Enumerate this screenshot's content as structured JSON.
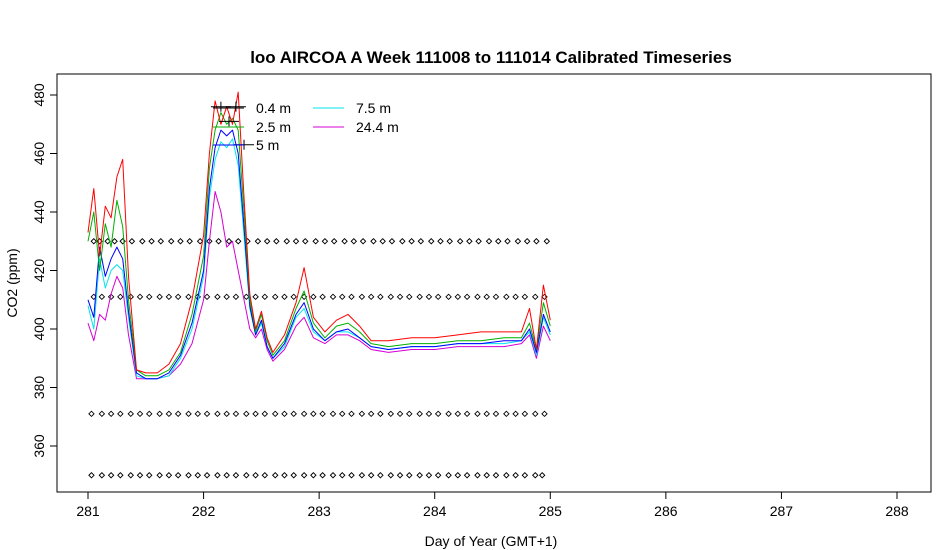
{
  "chart_data": {
    "type": "line",
    "title": "loo AIRCOA A  Week 111008 to 111014  Calibrated Timeseries",
    "xlabel": "Day of Year (GMT+1)",
    "ylabel": "CO2 (ppm)",
    "xlim": [
      281,
      288
    ],
    "ylim": [
      348,
      485
    ],
    "x_ticks": [
      281,
      282,
      283,
      284,
      285,
      286,
      287,
      288
    ],
    "y_ticks": [
      360,
      380,
      400,
      420,
      440,
      460,
      480
    ],
    "grid": false,
    "legend_position": "top-left",
    "series": [
      {
        "name": "0.4 m",
        "color": "#000000",
        "style": "errorbar",
        "points": [
          [
            282.15,
            476
          ],
          [
            282.22,
            471
          ],
          [
            282.28,
            476
          ],
          [
            282.35,
            463
          ]
        ]
      },
      {
        "name": "2.5 m",
        "color": "#00b000",
        "style": "line",
        "points": [
          [
            281.0,
            430
          ],
          [
            281.05,
            440
          ],
          [
            281.1,
            420
          ],
          [
            281.15,
            436
          ],
          [
            281.2,
            428
          ],
          [
            281.25,
            444
          ],
          [
            281.3,
            435
          ],
          [
            281.35,
            410
          ],
          [
            281.42,
            386
          ],
          [
            281.5,
            384
          ],
          [
            281.6,
            384
          ],
          [
            281.7,
            386
          ],
          [
            281.8,
            392
          ],
          [
            281.9,
            405
          ],
          [
            282.0,
            425
          ],
          [
            282.05,
            455
          ],
          [
            282.1,
            468
          ],
          [
            282.15,
            474
          ],
          [
            282.2,
            470
          ],
          [
            282.25,
            472
          ],
          [
            282.3,
            468
          ],
          [
            282.35,
            440
          ],
          [
            282.4,
            410
          ],
          [
            282.45,
            399
          ],
          [
            282.5,
            405
          ],
          [
            282.55,
            396
          ],
          [
            282.6,
            391
          ],
          [
            282.7,
            396
          ],
          [
            282.8,
            407
          ],
          [
            282.87,
            413
          ],
          [
            282.95,
            402
          ],
          [
            283.05,
            397
          ],
          [
            283.15,
            401
          ],
          [
            283.25,
            402
          ],
          [
            283.35,
            399
          ],
          [
            283.45,
            395
          ],
          [
            283.6,
            394
          ],
          [
            283.8,
            395
          ],
          [
            284.0,
            395
          ],
          [
            284.2,
            396
          ],
          [
            284.4,
            396
          ],
          [
            284.6,
            397
          ],
          [
            284.75,
            397
          ],
          [
            284.82,
            402
          ],
          [
            284.88,
            393
          ],
          [
            284.94,
            409
          ],
          [
            285.0,
            401
          ]
        ]
      },
      {
        "name": "5 m",
        "color": "#0000ff",
        "style": "line",
        "points": [
          [
            281.0,
            410
          ],
          [
            281.05,
            404
          ],
          [
            281.1,
            428
          ],
          [
            281.15,
            418
          ],
          [
            281.2,
            424
          ],
          [
            281.25,
            428
          ],
          [
            281.3,
            424
          ],
          [
            281.35,
            406
          ],
          [
            281.42,
            385
          ],
          [
            281.5,
            383
          ],
          [
            281.6,
            383
          ],
          [
            281.7,
            385
          ],
          [
            281.8,
            391
          ],
          [
            281.9,
            402
          ],
          [
            282.0,
            420
          ],
          [
            282.05,
            448
          ],
          [
            282.1,
            462
          ],
          [
            282.15,
            468
          ],
          [
            282.2,
            466
          ],
          [
            282.25,
            468
          ],
          [
            282.3,
            460
          ],
          [
            282.35,
            435
          ],
          [
            282.4,
            408
          ],
          [
            282.45,
            398
          ],
          [
            282.5,
            403
          ],
          [
            282.55,
            394
          ],
          [
            282.6,
            390
          ],
          [
            282.7,
            395
          ],
          [
            282.8,
            405
          ],
          [
            282.87,
            409
          ],
          [
            282.95,
            400
          ],
          [
            283.05,
            396
          ],
          [
            283.15,
            399
          ],
          [
            283.25,
            400
          ],
          [
            283.35,
            397
          ],
          [
            283.45,
            394
          ],
          [
            283.6,
            393
          ],
          [
            283.8,
            394
          ],
          [
            284.0,
            394
          ],
          [
            284.2,
            395
          ],
          [
            284.4,
            395
          ],
          [
            284.6,
            396
          ],
          [
            284.75,
            396
          ],
          [
            284.82,
            400
          ],
          [
            284.88,
            392
          ],
          [
            284.94,
            405
          ],
          [
            285.0,
            399
          ]
        ]
      },
      {
        "name": "7.5 m",
        "color": "#00e5ee",
        "style": "line",
        "points": [
          [
            281.0,
            408
          ],
          [
            281.05,
            400
          ],
          [
            281.1,
            424
          ],
          [
            281.15,
            414
          ],
          [
            281.2,
            420
          ],
          [
            281.25,
            422
          ],
          [
            281.3,
            420
          ],
          [
            281.35,
            404
          ],
          [
            281.42,
            384
          ],
          [
            281.5,
            383
          ],
          [
            281.6,
            383
          ],
          [
            281.7,
            384
          ],
          [
            281.8,
            390
          ],
          [
            281.9,
            400
          ],
          [
            282.0,
            418
          ],
          [
            282.05,
            445
          ],
          [
            282.1,
            458
          ],
          [
            282.15,
            464
          ],
          [
            282.2,
            462
          ],
          [
            282.25,
            465
          ],
          [
            282.3,
            456
          ],
          [
            282.35,
            432
          ],
          [
            282.4,
            407
          ],
          [
            282.45,
            398
          ],
          [
            282.5,
            402
          ],
          [
            282.55,
            394
          ],
          [
            282.6,
            390
          ],
          [
            282.7,
            394
          ],
          [
            282.8,
            404
          ],
          [
            282.87,
            407
          ],
          [
            282.95,
            399
          ],
          [
            283.05,
            396
          ],
          [
            283.15,
            399
          ],
          [
            283.25,
            399
          ],
          [
            283.35,
            397
          ],
          [
            283.45,
            394
          ],
          [
            283.6,
            393
          ],
          [
            283.8,
            394
          ],
          [
            284.0,
            394
          ],
          [
            284.2,
            395
          ],
          [
            284.4,
            395
          ],
          [
            284.6,
            395
          ],
          [
            284.75,
            396
          ],
          [
            284.82,
            399
          ],
          [
            284.88,
            391
          ],
          [
            284.94,
            404
          ],
          [
            285.0,
            398
          ]
        ]
      },
      {
        "name": "24.4 m",
        "color": "#d400d4",
        "style": "line",
        "points": [
          [
            281.0,
            402
          ],
          [
            281.05,
            396
          ],
          [
            281.1,
            405
          ],
          [
            281.15,
            403
          ],
          [
            281.2,
            412
          ],
          [
            281.25,
            418
          ],
          [
            281.3,
            414
          ],
          [
            281.35,
            398
          ],
          [
            281.42,
            383
          ],
          [
            281.5,
            383
          ],
          [
            281.6,
            383
          ],
          [
            281.7,
            384
          ],
          [
            281.8,
            388
          ],
          [
            281.9,
            395
          ],
          [
            282.0,
            410
          ],
          [
            282.05,
            430
          ],
          [
            282.1,
            447
          ],
          [
            282.15,
            440
          ],
          [
            282.2,
            428
          ],
          [
            282.25,
            430
          ],
          [
            282.3,
            420
          ],
          [
            282.35,
            410
          ],
          [
            282.4,
            400
          ],
          [
            282.45,
            397
          ],
          [
            282.5,
            400
          ],
          [
            282.55,
            393
          ],
          [
            282.6,
            389
          ],
          [
            282.7,
            393
          ],
          [
            282.8,
            401
          ],
          [
            282.87,
            404
          ],
          [
            282.95,
            397
          ],
          [
            283.05,
            395
          ],
          [
            283.15,
            398
          ],
          [
            283.25,
            398
          ],
          [
            283.35,
            396
          ],
          [
            283.45,
            393
          ],
          [
            283.6,
            392
          ],
          [
            283.8,
            393
          ],
          [
            284.0,
            393
          ],
          [
            284.2,
            394
          ],
          [
            284.4,
            394
          ],
          [
            284.6,
            394
          ],
          [
            284.75,
            395
          ],
          [
            284.82,
            398
          ],
          [
            284.88,
            390
          ],
          [
            284.94,
            401
          ],
          [
            285.0,
            396
          ]
        ]
      },
      {
        "name": "",
        "color": "#ff0000",
        "style": "line",
        "points": [
          [
            281.0,
            433
          ],
          [
            281.05,
            448
          ],
          [
            281.1,
            425
          ],
          [
            281.15,
            442
          ],
          [
            281.2,
            438
          ],
          [
            281.25,
            452
          ],
          [
            281.3,
            458
          ],
          [
            281.35,
            418
          ],
          [
            281.42,
            386
          ],
          [
            281.5,
            385
          ],
          [
            281.6,
            385
          ],
          [
            281.7,
            388
          ],
          [
            281.8,
            395
          ],
          [
            281.9,
            410
          ],
          [
            282.0,
            432
          ],
          [
            282.05,
            460
          ],
          [
            282.1,
            478
          ],
          [
            282.15,
            470
          ],
          [
            282.2,
            476
          ],
          [
            282.25,
            470
          ],
          [
            282.3,
            481
          ],
          [
            282.35,
            445
          ],
          [
            282.4,
            412
          ],
          [
            282.45,
            400
          ],
          [
            282.5,
            406
          ],
          [
            282.55,
            397
          ],
          [
            282.6,
            392
          ],
          [
            282.7,
            398
          ],
          [
            282.8,
            409
          ],
          [
            282.87,
            421
          ],
          [
            282.95,
            404
          ],
          [
            283.05,
            399
          ],
          [
            283.15,
            403
          ],
          [
            283.25,
            405
          ],
          [
            283.35,
            401
          ],
          [
            283.45,
            396
          ],
          [
            283.6,
            396
          ],
          [
            283.8,
            397
          ],
          [
            284.0,
            397
          ],
          [
            284.2,
            398
          ],
          [
            284.4,
            399
          ],
          [
            284.6,
            399
          ],
          [
            284.75,
            399
          ],
          [
            284.82,
            407
          ],
          [
            284.88,
            393
          ],
          [
            284.94,
            415
          ],
          [
            285.0,
            403
          ]
        ]
      }
    ],
    "marker_rows": [
      {
        "y": 430,
        "x": [
          281.05,
          281.1,
          281.17,
          281.23,
          281.3,
          281.38,
          281.47,
          281.55,
          281.63,
          281.72,
          281.8,
          281.88,
          281.97,
          282.05,
          282.13,
          282.22,
          282.3,
          282.38,
          282.47,
          282.55,
          282.63,
          282.72,
          282.8,
          282.88,
          282.97,
          283.05,
          283.13,
          283.22,
          283.3,
          283.38,
          283.47,
          283.55,
          283.63,
          283.72,
          283.8,
          283.88,
          283.97,
          284.05,
          284.13,
          284.22,
          284.3,
          284.38,
          284.47,
          284.55,
          284.63,
          284.72,
          284.8,
          284.88,
          284.97
        ]
      },
      {
        "y": 411,
        "x": [
          281.05,
          281.12,
          281.2,
          281.28,
          281.37,
          281.45,
          281.53,
          281.62,
          281.7,
          281.78,
          281.87,
          281.95,
          282.03,
          282.12,
          282.2,
          282.28,
          282.37,
          282.45,
          282.53,
          282.62,
          282.7,
          282.78,
          282.87,
          282.95,
          283.03,
          283.12,
          283.2,
          283.28,
          283.37,
          283.45,
          283.53,
          283.62,
          283.7,
          283.78,
          283.87,
          283.95,
          284.03,
          284.12,
          284.2,
          284.28,
          284.37,
          284.45,
          284.53,
          284.62,
          284.7,
          284.78,
          284.87,
          284.95
        ]
      },
      {
        "y": 371,
        "x": [
          281.03,
          281.12,
          281.2,
          281.28,
          281.37,
          281.45,
          281.53,
          281.62,
          281.7,
          281.78,
          281.87,
          281.95,
          282.03,
          282.12,
          282.2,
          282.28,
          282.37,
          282.45,
          282.53,
          282.62,
          282.7,
          282.78,
          282.87,
          282.95,
          283.03,
          283.12,
          283.2,
          283.28,
          283.37,
          283.45,
          283.53,
          283.62,
          283.7,
          283.78,
          283.87,
          283.95,
          284.03,
          284.12,
          284.2,
          284.28,
          284.37,
          284.45,
          284.53,
          284.62,
          284.7,
          284.78,
          284.87,
          284.95
        ]
      },
      {
        "y": 350,
        "x": [
          281.03,
          281.12,
          281.2,
          281.28,
          281.37,
          281.45,
          281.53,
          281.62,
          281.7,
          281.78,
          281.87,
          281.95,
          282.03,
          282.12,
          282.2,
          282.28,
          282.37,
          282.45,
          282.53,
          282.62,
          282.7,
          282.78,
          282.87,
          282.95,
          283.03,
          283.12,
          283.2,
          283.28,
          283.37,
          283.45,
          283.53,
          283.62,
          283.7,
          283.78,
          283.87,
          283.95,
          284.03,
          284.12,
          284.2,
          284.28,
          284.37,
          284.45,
          284.53,
          284.62,
          284.7,
          284.78,
          284.87,
          284.93
        ]
      }
    ]
  }
}
